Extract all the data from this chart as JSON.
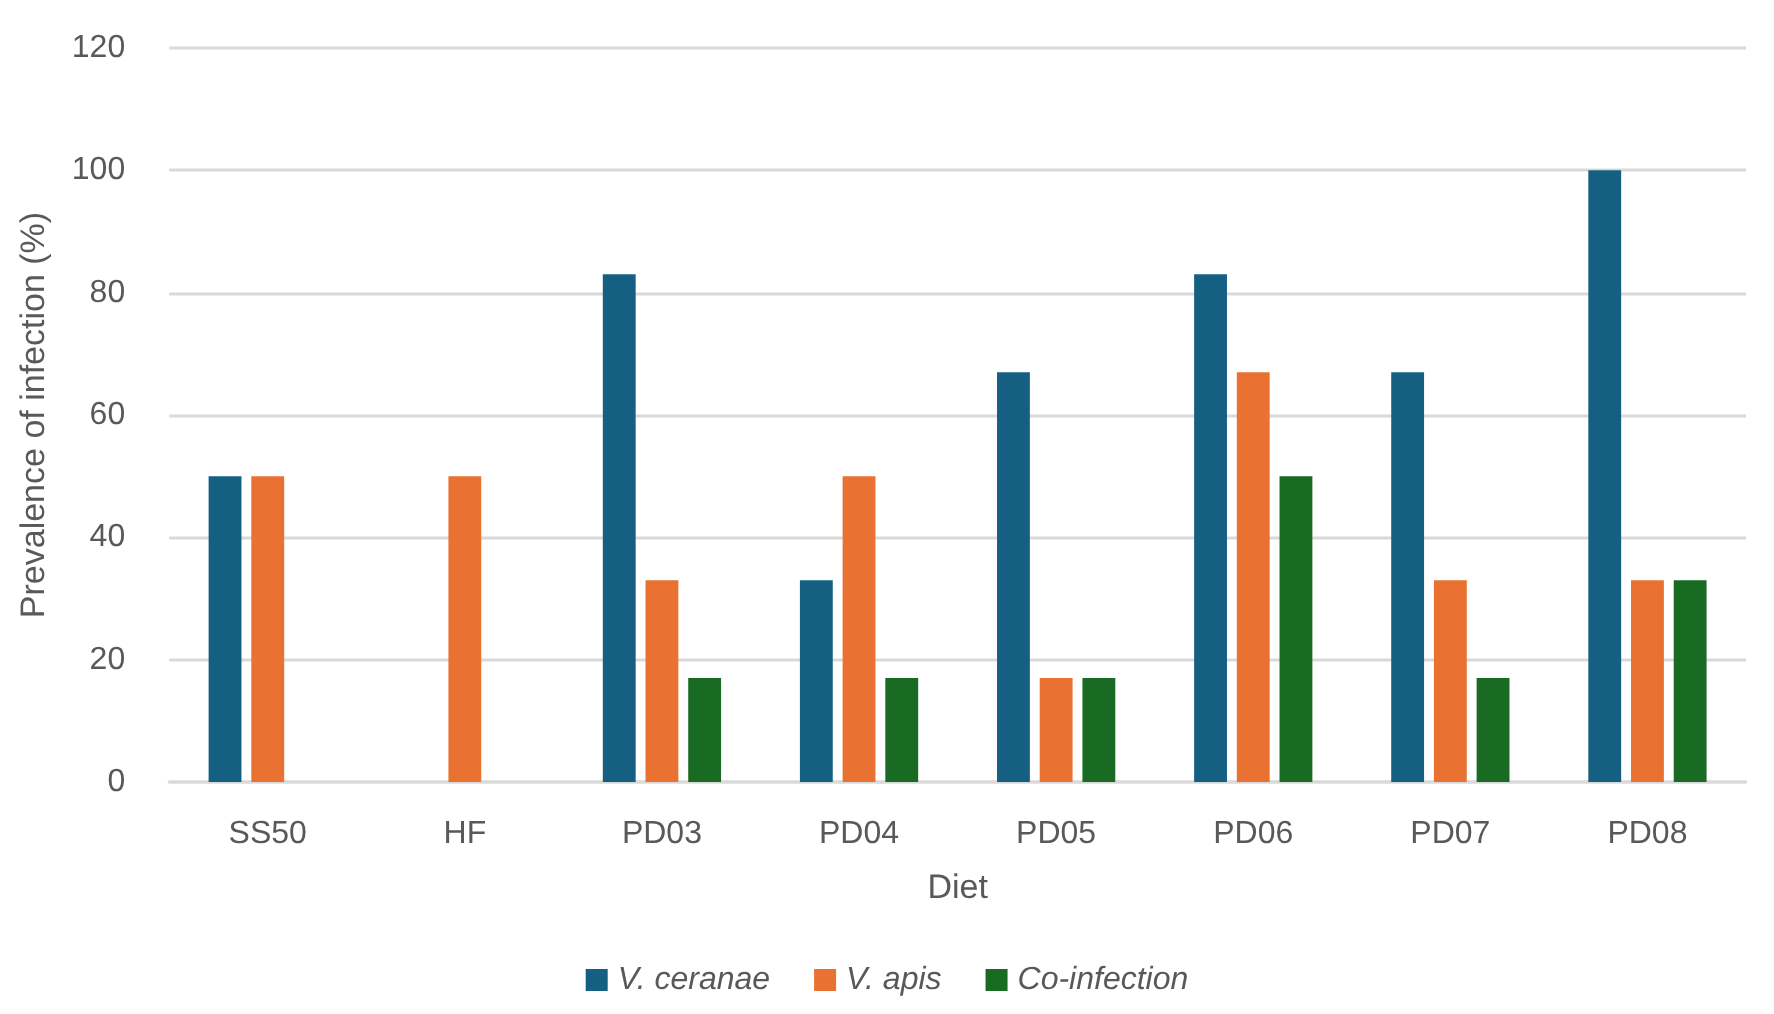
{
  "chart_data": {
    "type": "bar",
    "xlabel": "Diet",
    "ylabel": "Prevalence of infection (%)",
    "categories": [
      "SS50",
      "HF",
      "PD03",
      "PD04",
      "PD05",
      "PD06",
      "PD07",
      "PD08"
    ],
    "series": [
      {
        "name": "V. ceranae",
        "color": "#156082",
        "values": [
          50,
          0,
          83,
          33,
          67,
          83,
          67,
          100
        ]
      },
      {
        "name": "V. apis",
        "color": "#e97132",
        "values": [
          50,
          50,
          33,
          50,
          17,
          67,
          33,
          33
        ]
      },
      {
        "name": "Co-infection",
        "color": "#196b24",
        "values": [
          0,
          0,
          17,
          17,
          17,
          50,
          17,
          33
        ]
      }
    ],
    "ylim": [
      0,
      120
    ],
    "yticks": [
      0,
      20,
      40,
      60,
      80,
      100,
      120
    ],
    "grid": "y",
    "legend": "bottom"
  }
}
